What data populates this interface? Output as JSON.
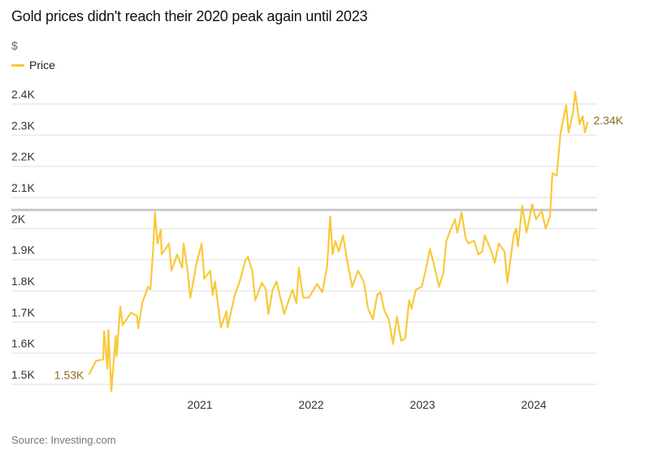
{
  "title": "Gold prices didn't reach their 2020 peak again until 2023",
  "source": "Source: Investing.com",
  "chart_data": {
    "type": "line",
    "title": "Gold prices didn't reach their 2020 peak again until 2023",
    "ylabel": "$",
    "xlabel": "",
    "ylim": [
      1450,
      2450
    ],
    "yticks": [
      1500,
      1600,
      1700,
      1800,
      1900,
      2000,
      2100,
      2200,
      2300,
      2400
    ],
    "ytick_labels": [
      "1.5K",
      "1.6K",
      "1.7K",
      "1.8K",
      "1.9K",
      "2K",
      "2.1K",
      "2.2K",
      "2.3K",
      "2.4K"
    ],
    "xticks": [
      "2021",
      "2022",
      "2023",
      "2024"
    ],
    "grid": true,
    "legend": "top-left",
    "reference_line": {
      "value": 2060,
      "color": "#c8c8c8"
    },
    "start_label": "1.53K",
    "end_label": "2.34K",
    "series": [
      {
        "name": "Price",
        "color": "#f9c93b",
        "label_color": "#8a6d1e",
        "points": [
          [
            "2020-01-02",
            1530
          ],
          [
            "2020-01-25",
            1575
          ],
          [
            "2020-02-18",
            1580
          ],
          [
            "2020-02-21",
            1670
          ],
          [
            "2020-03-03",
            1550
          ],
          [
            "2020-03-06",
            1675
          ],
          [
            "2020-03-16",
            1478
          ],
          [
            "2020-03-30",
            1655
          ],
          [
            "2020-04-02",
            1590
          ],
          [
            "2020-04-14",
            1750
          ],
          [
            "2020-04-22",
            1690
          ],
          [
            "2020-05-19",
            1730
          ],
          [
            "2020-06-08",
            1720
          ],
          [
            "2020-06-12",
            1680
          ],
          [
            "2020-06-25",
            1760
          ],
          [
            "2020-07-14",
            1813
          ],
          [
            "2020-07-22",
            1805
          ],
          [
            "2020-07-30",
            1917
          ],
          [
            "2020-08-06",
            2052
          ],
          [
            "2020-08-14",
            1952
          ],
          [
            "2020-08-25",
            1996
          ],
          [
            "2020-08-28",
            1917
          ],
          [
            "2020-09-21",
            1952
          ],
          [
            "2020-09-29",
            1865
          ],
          [
            "2020-10-18",
            1917
          ],
          [
            "2020-11-03",
            1874
          ],
          [
            "2020-11-08",
            1952
          ],
          [
            "2020-11-21",
            1865
          ],
          [
            "2020-11-30",
            1778
          ],
          [
            "2020-12-19",
            1883
          ],
          [
            "2021-01-06",
            1952
          ],
          [
            "2021-01-15",
            1839
          ],
          [
            "2021-02-03",
            1865
          ],
          [
            "2021-02-11",
            1787
          ],
          [
            "2021-02-19",
            1830
          ],
          [
            "2021-03-10",
            1683
          ],
          [
            "2021-03-29",
            1735
          ],
          [
            "2021-04-01",
            1683
          ],
          [
            "2021-04-25",
            1787
          ],
          [
            "2021-05-11",
            1830
          ],
          [
            "2021-05-30",
            1900
          ],
          [
            "2021-06-07",
            1909
          ],
          [
            "2021-06-21",
            1865
          ],
          [
            "2021-07-01",
            1770
          ],
          [
            "2021-07-23",
            1826
          ],
          [
            "2021-08-05",
            1804
          ],
          [
            "2021-08-13",
            1726
          ],
          [
            "2021-08-27",
            1804
          ],
          [
            "2021-09-09",
            1830
          ],
          [
            "2021-10-04",
            1726
          ],
          [
            "2021-10-31",
            1804
          ],
          [
            "2021-11-13",
            1761
          ],
          [
            "2021-11-21",
            1874
          ],
          [
            "2021-12-05",
            1778
          ],
          [
            "2021-12-24",
            1778
          ],
          [
            "2022-01-20",
            1822
          ],
          [
            "2022-02-06",
            1796
          ],
          [
            "2022-02-22",
            1880
          ],
          [
            "2022-03-04",
            2039
          ],
          [
            "2022-03-12",
            1917
          ],
          [
            "2022-03-21",
            1961
          ],
          [
            "2022-04-01",
            1926
          ],
          [
            "2022-04-15",
            1978
          ],
          [
            "2022-04-28",
            1900
          ],
          [
            "2022-05-15",
            1813
          ],
          [
            "2022-06-03",
            1865
          ],
          [
            "2022-06-22",
            1830
          ],
          [
            "2022-07-06",
            1743
          ],
          [
            "2022-07-22",
            1709
          ],
          [
            "2022-08-05",
            1787
          ],
          [
            "2022-08-16",
            1796
          ],
          [
            "2022-08-29",
            1735
          ],
          [
            "2022-09-12",
            1709
          ],
          [
            "2022-09-26",
            1630
          ],
          [
            "2022-10-09",
            1717
          ],
          [
            "2022-10-23",
            1639
          ],
          [
            "2022-11-05",
            1648
          ],
          [
            "2022-11-18",
            1770
          ],
          [
            "2022-11-26",
            1743
          ],
          [
            "2022-12-10",
            1804
          ],
          [
            "2022-12-29",
            1813
          ],
          [
            "2023-01-11",
            1865
          ],
          [
            "2023-01-25",
            1935
          ],
          [
            "2023-02-08",
            1883
          ],
          [
            "2023-02-24",
            1813
          ],
          [
            "2023-03-10",
            1857
          ],
          [
            "2023-03-20",
            1961
          ],
          [
            "2023-04-03",
            1996
          ],
          [
            "2023-04-17",
            2030
          ],
          [
            "2023-04-25",
            1987
          ],
          [
            "2023-05-09",
            2052
          ],
          [
            "2023-05-22",
            1970
          ],
          [
            "2023-05-31",
            1952
          ],
          [
            "2023-06-19",
            1961
          ],
          [
            "2023-07-03",
            1917
          ],
          [
            "2023-07-16",
            1926
          ],
          [
            "2023-07-24",
            1978
          ],
          [
            "2023-08-12",
            1935
          ],
          [
            "2023-08-26",
            1891
          ],
          [
            "2023-09-08",
            1952
          ],
          [
            "2023-09-27",
            1926
          ],
          [
            "2023-10-06",
            1826
          ],
          [
            "2023-10-27",
            1978
          ],
          [
            "2023-11-04",
            2000
          ],
          [
            "2023-11-10",
            1943
          ],
          [
            "2023-11-24",
            2074
          ],
          [
            "2023-12-08",
            1987
          ],
          [
            "2023-12-27",
            2078
          ],
          [
            "2024-01-08",
            2030
          ],
          [
            "2024-01-27",
            2057
          ],
          [
            "2024-02-09",
            2000
          ],
          [
            "2024-02-23",
            2039
          ],
          [
            "2024-03-02",
            2178
          ],
          [
            "2024-03-16",
            2170
          ],
          [
            "2024-03-29",
            2309
          ],
          [
            "2024-04-16",
            2396
          ],
          [
            "2024-04-24",
            2309
          ],
          [
            "2024-05-08",
            2370
          ],
          [
            "2024-05-16",
            2439
          ],
          [
            "2024-05-30",
            2335
          ],
          [
            "2024-06-09",
            2361
          ],
          [
            "2024-06-17",
            2309
          ],
          [
            "2024-06-26",
            2343
          ]
        ]
      }
    ]
  }
}
